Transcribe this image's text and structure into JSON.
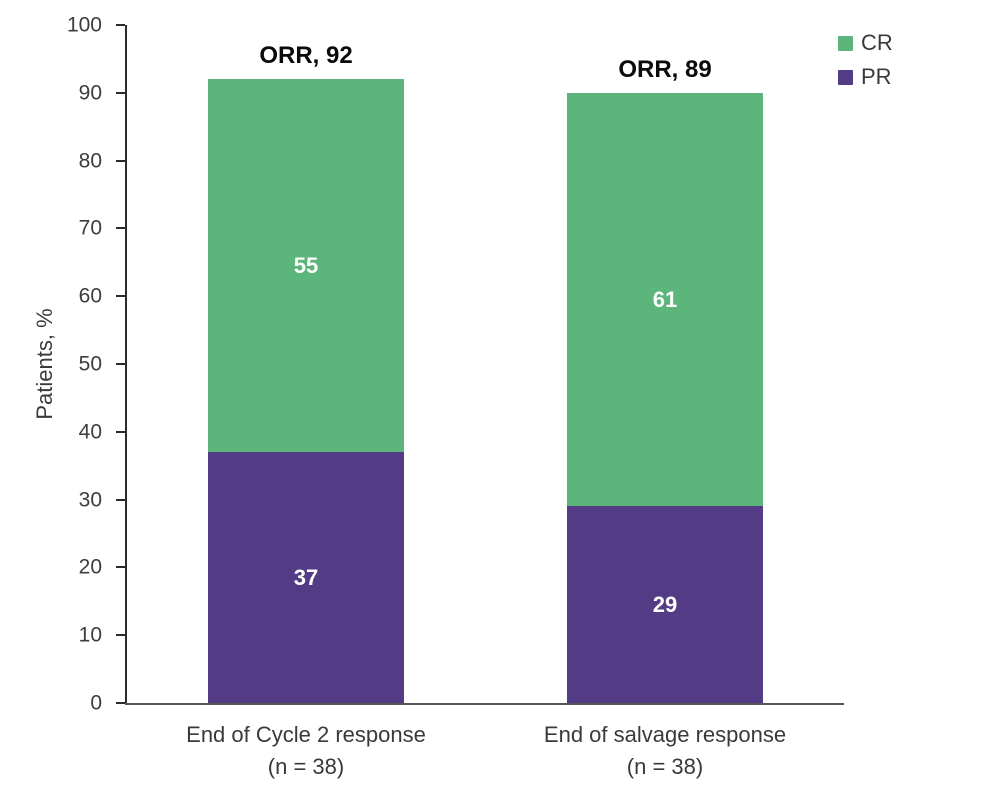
{
  "chart_data": {
    "type": "bar",
    "subtype": "stacked-vertical",
    "title": "",
    "ylabel": "Patients, %",
    "xlabel": "",
    "ylim": [
      0,
      100
    ],
    "yticks": [
      0,
      10,
      20,
      30,
      40,
      50,
      60,
      70,
      80,
      90,
      100
    ],
    "grid": false,
    "legend_position": "top-right",
    "categories": [
      {
        "label": "End of Cycle 2 response",
        "sublabel": "(n = 38)"
      },
      {
        "label": "End of salvage response",
        "sublabel": "(n = 38)"
      }
    ],
    "series": [
      {
        "name": "PR",
        "color": "#533b86",
        "values": [
          37,
          29
        ]
      },
      {
        "name": "CR",
        "color": "#5cb57a",
        "values": [
          55,
          61
        ]
      }
    ],
    "annotations": [
      "ORR, 92",
      "ORR, 89"
    ],
    "legend": [
      {
        "label": "CR",
        "color": "#5cb57a"
      },
      {
        "label": "PR",
        "color": "#533b86"
      }
    ]
  },
  "colors": {
    "cr_green": "#5cb57a",
    "pr_purple": "#533b86",
    "axis": "#2b2b2b",
    "text": "#3a3a3a",
    "value_text": "#ffffff",
    "annotation_text": "#0a0a0a"
  }
}
